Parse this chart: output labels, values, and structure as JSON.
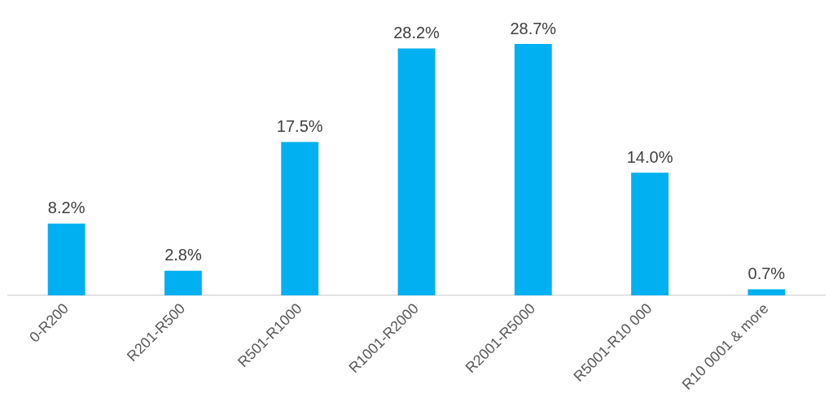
{
  "chart_data": {
    "type": "bar",
    "categories": [
      "0-R200",
      "R201-R500",
      "R501-R1000",
      "R1001-R2000",
      "R2001-R5000",
      "R5001-R10 000",
      "R10 0001 & more"
    ],
    "values": [
      8.2,
      2.8,
      17.5,
      28.2,
      28.7,
      14.0,
      0.7
    ],
    "color": "#00b0f0",
    "value_labels": [
      "8.2%",
      "2.8%",
      "17.5%",
      "28.2%",
      "28.7%",
      "14.0%",
      "0.7%"
    ]
  }
}
